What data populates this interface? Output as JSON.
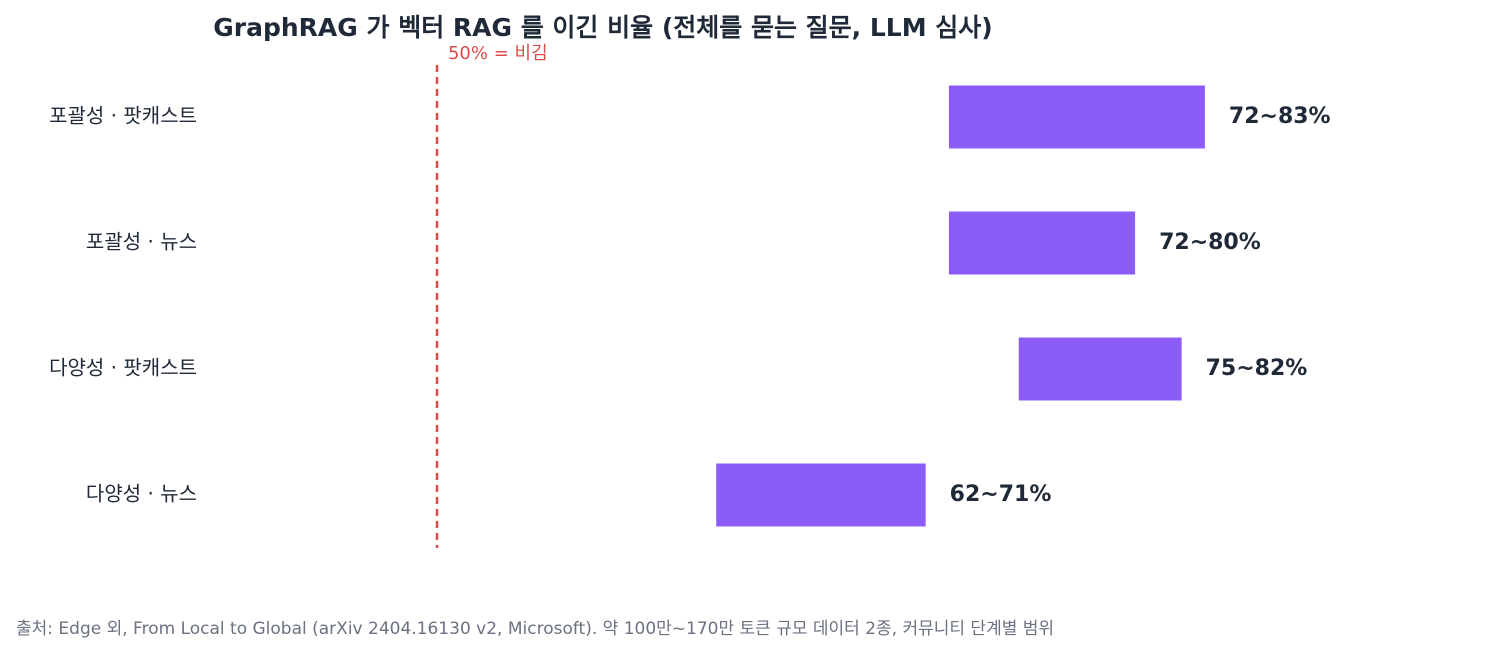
{
  "chart_data": {
    "type": "range-bar",
    "title": "GraphRAG 가 벡터 RAG 를 이긴 비율 (전체를 묻는 질문, LLM 심사)",
    "categories": [
      "포괄성 · 팟캐스트",
      "포괄성 · 뉴스",
      "다양성 · 팟캐스트",
      "다양성 · 뉴스"
    ],
    "low": [
      72,
      72,
      75,
      62
    ],
    "high": [
      83,
      80,
      82,
      71
    ],
    "value_labels": [
      "72~83%",
      "72~80%",
      "75~82%",
      "62~71%"
    ],
    "color": "#8b5cf6",
    "xlim": [
      40,
      93
    ],
    "reference_line": {
      "value": 50,
      "label": "50% = 비김",
      "color": "#dc4c4c"
    },
    "source": "출처: Edge 외, From Local to Global (arXiv 2404.16130 v2, Microsoft). 약 100만~170만 토큰 규모 데이터 2종, 커뮤니티 단계별 범위"
  }
}
